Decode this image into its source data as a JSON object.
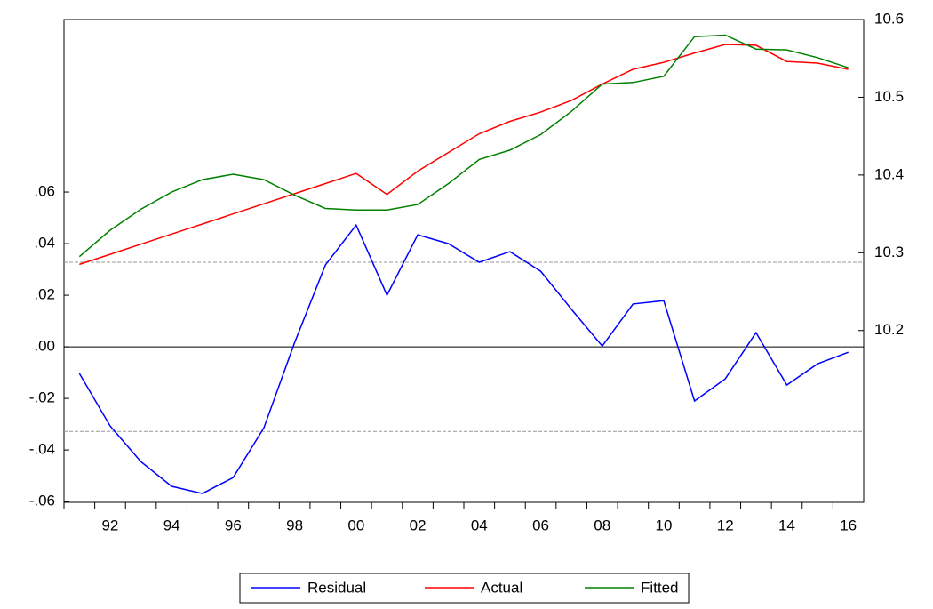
{
  "chart_data": {
    "type": "line",
    "categories": [
      null,
      "92",
      null,
      "94",
      null,
      "96",
      null,
      "98",
      null,
      "00",
      null,
      "02",
      null,
      "04",
      null,
      "06",
      null,
      "08",
      null,
      "10",
      null,
      "12",
      null,
      "14",
      null,
      "16"
    ],
    "series": [
      {
        "name": "Residual",
        "color": "#0000ff",
        "axis": "y",
        "values": [
          -0.0103,
          -0.0307,
          -0.0445,
          -0.0541,
          -0.0569,
          -0.0507,
          -0.0314,
          0.0017,
          0.0317,
          0.0472,
          0.02,
          0.0434,
          0.04,
          0.0328,
          0.0369,
          0.0293,
          0.0145,
          0.0003,
          0.0166,
          0.0179,
          -0.021,
          -0.0124,
          0.0055,
          -0.0148,
          -0.0066,
          -0.0021
        ]
      },
      {
        "name": "Actual",
        "color": "#ff0000",
        "axis": "y2",
        "values": [
          10.285,
          10.298,
          10.311,
          10.324,
          10.337,
          10.35,
          10.363,
          10.376,
          10.389,
          10.402,
          10.375,
          10.405,
          10.429,
          10.453,
          10.469,
          10.481,
          10.496,
          10.517,
          10.536,
          10.545,
          10.557,
          10.568,
          10.567,
          10.546,
          10.544,
          10.536
        ]
      },
      {
        "name": "Fitted",
        "color": "#008000",
        "axis": "y2",
        "values": [
          10.295,
          10.329,
          10.356,
          10.378,
          10.394,
          10.401,
          10.394,
          10.374,
          10.357,
          10.355,
          10.355,
          10.362,
          10.389,
          10.42,
          10.432,
          10.452,
          10.482,
          10.517,
          10.519,
          10.527,
          10.578,
          10.58,
          10.562,
          10.561,
          10.551,
          10.538
        ]
      }
    ],
    "ylim": [
      -0.0603,
      0.1269
    ],
    "yticks": [
      {
        "value": -0.06,
        "label": "-.06"
      },
      {
        "value": -0.04,
        "label": "-.04"
      },
      {
        "value": -0.02,
        "label": "-.02"
      },
      {
        "value": 0,
        "label": ".00"
      },
      {
        "value": 0.02,
        "label": ".02"
      },
      {
        "value": 0.04,
        "label": ".04"
      },
      {
        "value": 0.06,
        "label": ".06"
      }
    ],
    "y2lim": [
      9.979,
      10.6
    ],
    "y2ticks": [
      10.2,
      10.3,
      10.4,
      10.5,
      10.6
    ],
    "reference_lines": [
      0.0328,
      -0.0328
    ],
    "legend": "bottom"
  }
}
